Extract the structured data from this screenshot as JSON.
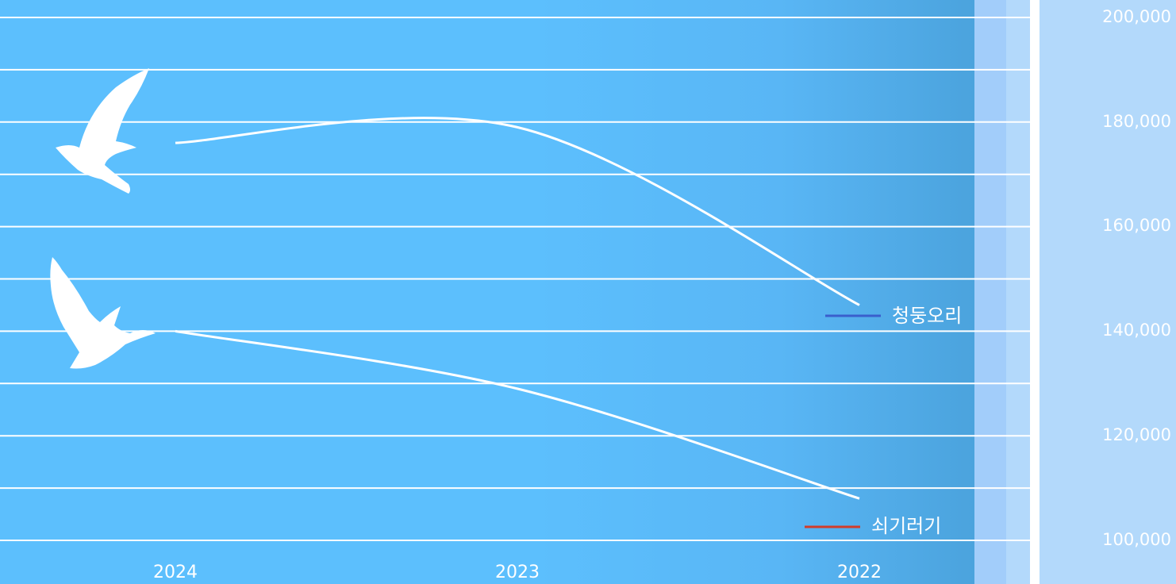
{
  "colors": {
    "background": "#5cbffd",
    "panel": "#b3d9fb",
    "line": "#ffffff",
    "grid": "#ffffff"
  },
  "icons": [
    "bird-silhouette-icon",
    "bird-silhouette-icon"
  ],
  "chart_data": {
    "type": "line",
    "x": [
      "2024",
      "2023",
      "2022"
    ],
    "y_ticks": [
      "200,000",
      "180,000",
      "160,000",
      "140,000",
      "120,000",
      "100,000"
    ],
    "ylim": [
      97000,
      202000
    ],
    "grid": true,
    "legend_position": "right, at line ends",
    "series": [
      {
        "name": "청둥오리",
        "values": [
          176000,
          179000,
          145000
        ],
        "legend_color": "#3a5fcd"
      },
      {
        "name": "쇠기러기",
        "values": [
          140000,
          129000,
          108000
        ],
        "legend_color": "#d23c2a"
      }
    ]
  }
}
